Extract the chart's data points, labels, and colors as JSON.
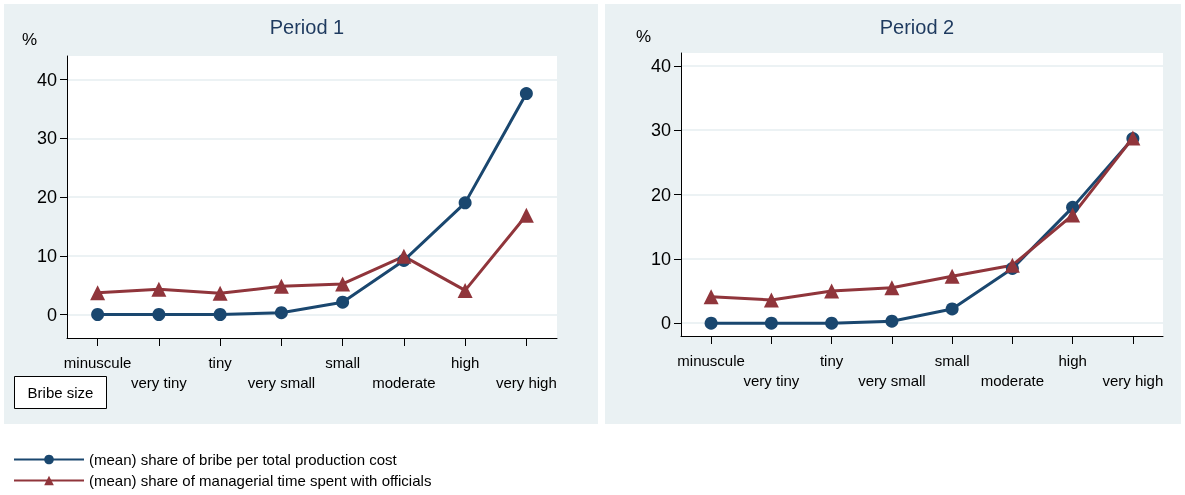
{
  "chart_data": [
    {
      "type": "line",
      "title": "Period 1",
      "xlabel": "Bribe size",
      "ylabel": "%",
      "categories": [
        "minuscule",
        "very tiny",
        "tiny",
        "very small",
        "small",
        "moderate",
        "high",
        "very high"
      ],
      "series": [
        {
          "name": "(mean) share of bribe per total production cost",
          "color": "#1a476f",
          "marker": "circle",
          "values": [
            0,
            0,
            0,
            0.3,
            2.1,
            9.2,
            19,
            37.6
          ]
        },
        {
          "name": "(mean) share of managerial time spent with officials",
          "color": "#90353b",
          "marker": "triangle",
          "values": [
            3.7,
            4.3,
            3.6,
            4.8,
            5.2,
            9.9,
            4.1,
            16.9
          ]
        }
      ],
      "ylim": [
        -4,
        44
      ],
      "yticks": [
        0,
        10,
        20,
        30,
        40
      ],
      "grid": "y",
      "legend": "bottom left"
    },
    {
      "type": "line",
      "title": "Period 2",
      "ylabel": "%",
      "categories": [
        "minuscule",
        "very tiny",
        "tiny",
        "very small",
        "small",
        "moderate",
        "high",
        "very high"
      ],
      "series": [
        {
          "color": "#1a476f",
          "marker": "circle",
          "values": [
            0,
            0,
            0,
            0.3,
            2.2,
            8.5,
            18,
            28.7
          ]
        },
        {
          "color": "#90353b",
          "marker": "triangle",
          "values": [
            4.1,
            3.6,
            5,
            5.5,
            7.3,
            9,
            16.8,
            28.8
          ]
        }
      ],
      "ylim": [
        -2,
        42
      ],
      "yticks": [
        0,
        10,
        20,
        30,
        40
      ],
      "grid": "y",
      "legend": false
    }
  ]
}
